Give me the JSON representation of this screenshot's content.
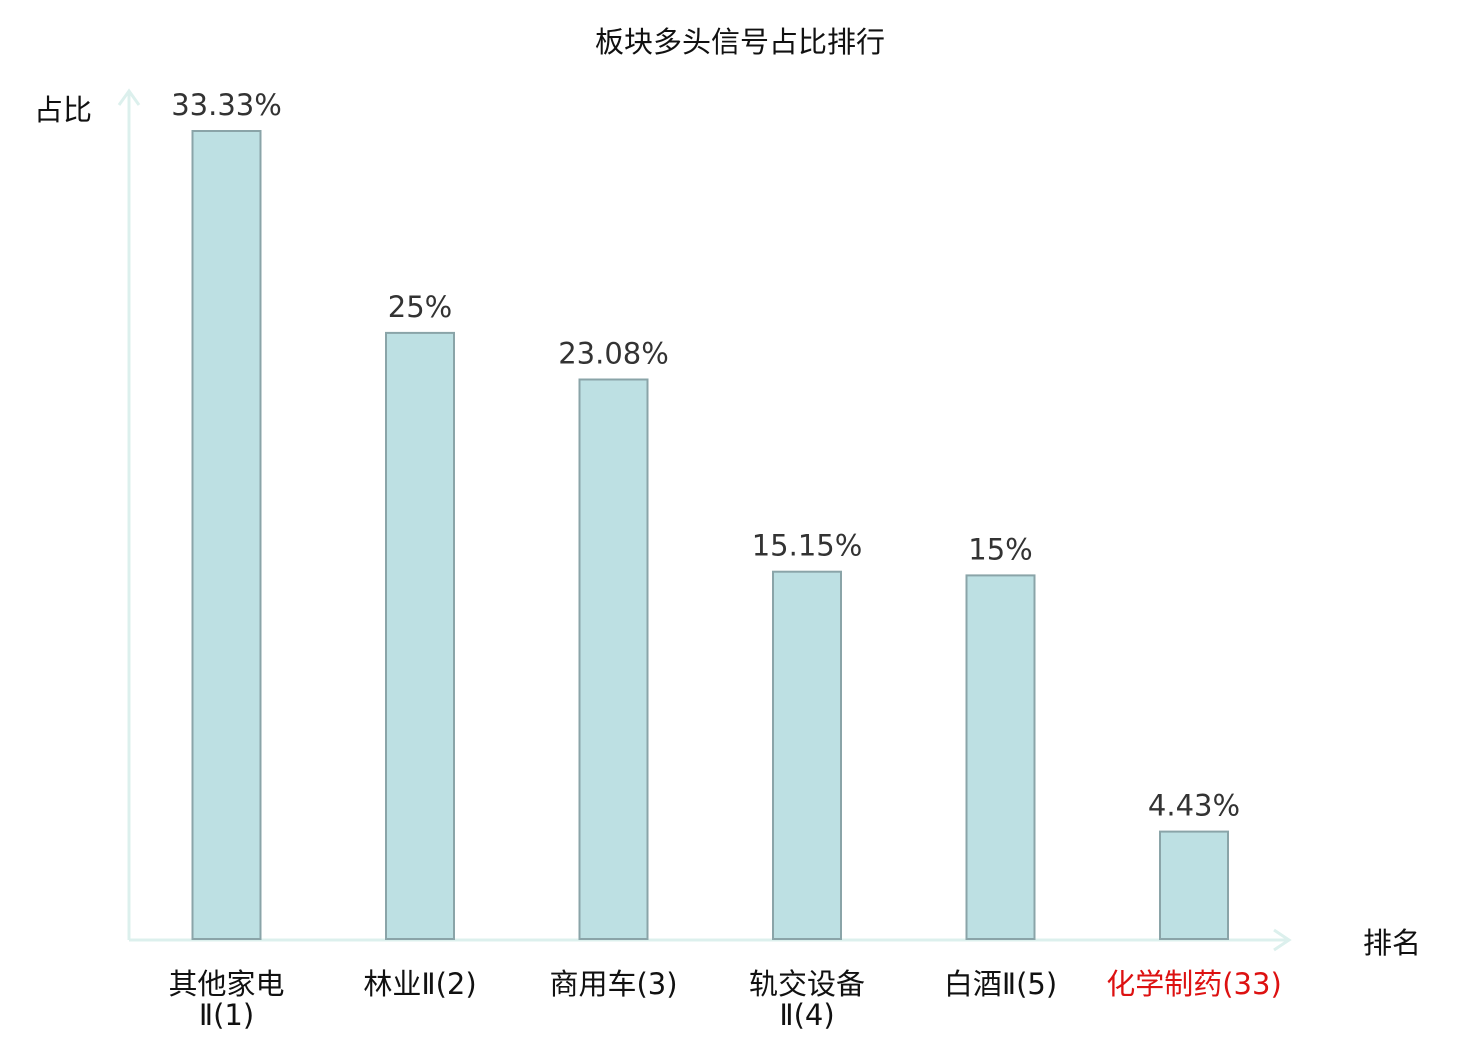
{
  "chart_data": {
    "type": "bar",
    "title": "板块多头信号占比排行",
    "ylabel": "占比",
    "xlabel": "排名",
    "ylim": [
      0,
      33.33
    ],
    "grid": false,
    "legend": "none",
    "categories": [
      {
        "line1": "其他家电",
        "line2": "Ⅱ(1)",
        "highlight": false
      },
      {
        "line1": "林业Ⅱ(2)",
        "line2": "",
        "highlight": false
      },
      {
        "line1": "商用车(3)",
        "line2": "",
        "highlight": false
      },
      {
        "line1": "轨交设备",
        "line2": "Ⅱ(4)",
        "highlight": false
      },
      {
        "line1": "白酒Ⅱ(5)",
        "line2": "",
        "highlight": false
      },
      {
        "line1": "化学制药(33)",
        "line2": "",
        "highlight": true
      }
    ],
    "values": [
      33.33,
      25,
      23.08,
      15.15,
      15,
      4.43
    ],
    "data_labels": [
      "33.33%",
      "25%",
      "23.08%",
      "15.15%",
      "15%",
      "4.43%"
    ],
    "colors": {
      "bar_fill": "#bde0e3",
      "bar_stroke": "#8aa4a8",
      "axis": "#dcf0ed",
      "label_text": "#333333",
      "title_text": "#111111",
      "highlight_text": "#dd1111"
    }
  }
}
